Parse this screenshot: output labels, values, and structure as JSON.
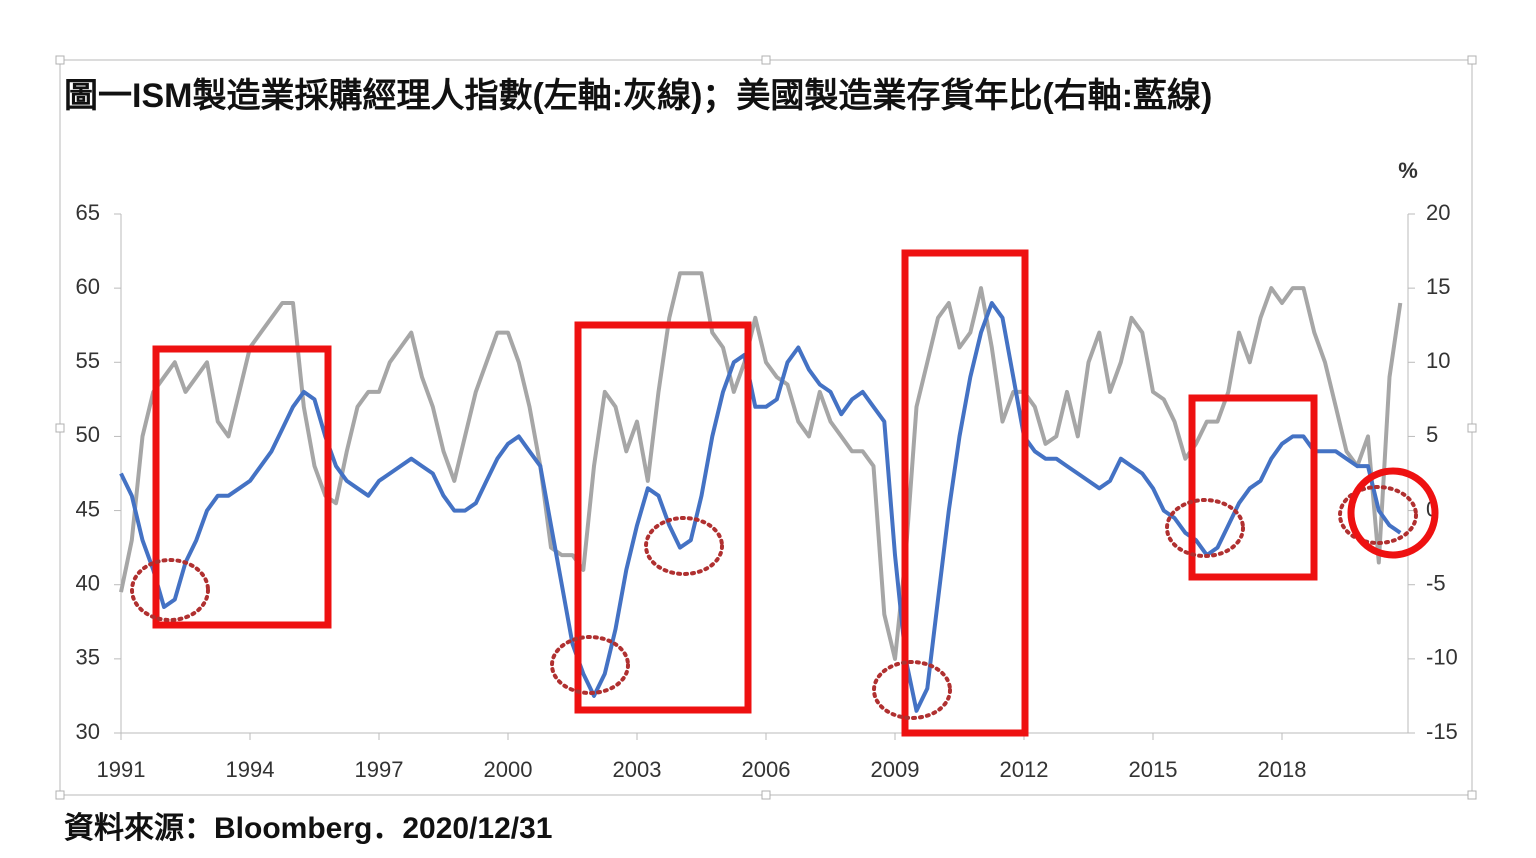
{
  "chart_data": {
    "type": "line",
    "title": "圖一ISM製造業採購經理人指數(左軸:灰線)；美國製造業存貨年比(右軸:藍線)",
    "y2label": "%",
    "note": "資料來源：Bloomberg．2020/12/31",
    "xlim": [
      1991,
      2021
    ],
    "xticks": [
      1991,
      1994,
      1997,
      2000,
      2003,
      2006,
      2009,
      2012,
      2015,
      2018
    ],
    "ylim": [
      30,
      65
    ],
    "yticks": [
      30,
      35,
      40,
      45,
      50,
      55,
      60,
      65
    ],
    "y2lim": [
      -15,
      20
    ],
    "y2ticks": [
      -15,
      -10,
      -5,
      0,
      5,
      10,
      15,
      20
    ],
    "x": [
      1991,
      1991.25,
      1991.5,
      1991.75,
      1992,
      1992.25,
      1992.5,
      1992.75,
      1993,
      1993.25,
      1993.5,
      1993.75,
      1994,
      1994.25,
      1994.5,
      1994.75,
      1995,
      1995.25,
      1995.5,
      1995.75,
      1996,
      1996.25,
      1996.5,
      1996.75,
      1997,
      1997.25,
      1997.5,
      1997.75,
      1998,
      1998.25,
      1998.5,
      1998.75,
      1999,
      1999.25,
      1999.5,
      1999.75,
      2000,
      2000.25,
      2000.5,
      2000.75,
      2001,
      2001.25,
      2001.5,
      2001.75,
      2002,
      2002.25,
      2002.5,
      2002.75,
      2003,
      2003.25,
      2003.5,
      2003.75,
      2004,
      2004.25,
      2004.5,
      2004.75,
      2005,
      2005.25,
      2005.5,
      2005.75,
      2006,
      2006.25,
      2006.5,
      2006.75,
      2007,
      2007.25,
      2007.5,
      2007.75,
      2008,
      2008.25,
      2008.5,
      2008.75,
      2009,
      2009.25,
      2009.5,
      2009.75,
      2010,
      2010.25,
      2010.5,
      2010.75,
      2011,
      2011.25,
      2011.5,
      2011.75,
      2012,
      2012.25,
      2012.5,
      2012.75,
      2013,
      2013.25,
      2013.5,
      2013.75,
      2014,
      2014.25,
      2014.5,
      2014.75,
      2015,
      2015.25,
      2015.5,
      2015.75,
      2016,
      2016.25,
      2016.5,
      2016.75,
      2017,
      2017.25,
      2017.5,
      2017.75,
      2018,
      2018.25,
      2018.5,
      2018.75,
      2019,
      2019.25,
      2019.5,
      2019.75,
      2020,
      2020.25,
      2020.5,
      2020.75
    ],
    "series": [
      {
        "color": "#a6a6a6",
        "axis": "y",
        "values": [
          39.5,
          43,
          50,
          53,
          54,
          55,
          53,
          54,
          55,
          51,
          50,
          53,
          56,
          57,
          58,
          59,
          59,
          52,
          48,
          46,
          45.5,
          49,
          52,
          53,
          53,
          55,
          56,
          57,
          54,
          52,
          49,
          47,
          50,
          53,
          55,
          57,
          57,
          55,
          52,
          48,
          42.5,
          42,
          42,
          41,
          48,
          53,
          52,
          49,
          51,
          47,
          53,
          58,
          61,
          61,
          61,
          57,
          56,
          53,
          55,
          58,
          55,
          54,
          53.5,
          51,
          50,
          53,
          51,
          50,
          49,
          49,
          48,
          38,
          35,
          42,
          52,
          55,
          58,
          59,
          56,
          57,
          60,
          56,
          51,
          53,
          53,
          52,
          49.5,
          50,
          53,
          50,
          55,
          57,
          53,
          55,
          58,
          57,
          53,
          52.5,
          51,
          48.5,
          49.5,
          51,
          51,
          53,
          57,
          55,
          58,
          60,
          59,
          60,
          60,
          57,
          55,
          52,
          49,
          48,
          50,
          41.5,
          54,
          59
        ]
      },
      {
        "color": "#4472c4",
        "axis": "y2",
        "values": [
          2.5,
          1,
          -2,
          -4,
          -6.5,
          -6,
          -3.5,
          -2,
          0,
          1,
          1,
          1.5,
          2,
          3,
          4,
          5.5,
          7,
          8,
          7.5,
          5,
          3,
          2,
          1.5,
          1,
          2,
          2.5,
          3,
          3.5,
          3,
          2.5,
          1,
          0,
          0,
          0.5,
          2,
          3.5,
          4.5,
          5,
          4,
          3,
          -1,
          -5,
          -9,
          -11,
          -12.5,
          -11,
          -8,
          -4,
          -1,
          1.5,
          1,
          -1,
          -2.5,
          -2,
          1,
          5,
          8,
          10,
          10.5,
          7,
          7,
          7.5,
          10,
          11,
          9.5,
          8.5,
          8,
          6.5,
          7.5,
          8,
          7,
          6,
          -3,
          -10,
          -13.5,
          -12,
          -6,
          0,
          5,
          9,
          12,
          14,
          13,
          9,
          5,
          4,
          3.5,
          3.5,
          3,
          2.5,
          2,
          1.5,
          2,
          3.5,
          3,
          2.5,
          1.5,
          0,
          -0.5,
          -1.5,
          -2,
          -3,
          -2.5,
          -1,
          0.5,
          1.5,
          2,
          3.5,
          4.5,
          5,
          5,
          4,
          4,
          4,
          3.5,
          3,
          3,
          0,
          -1,
          -1.5
        ]
      }
    ]
  }
}
